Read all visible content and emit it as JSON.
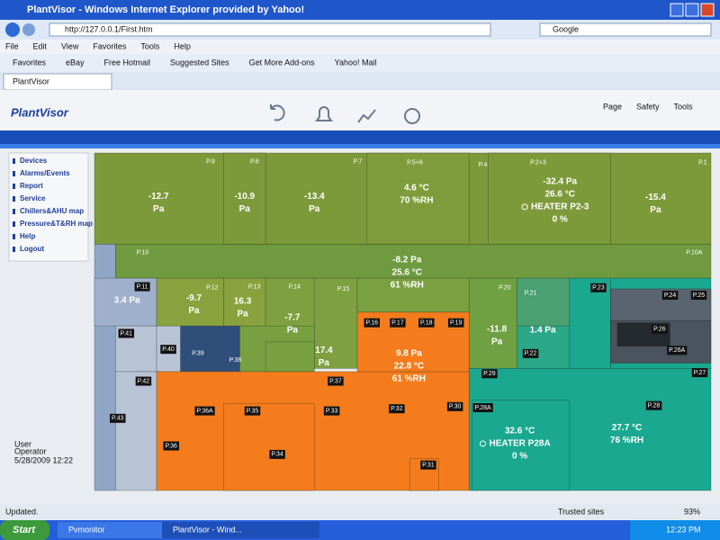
{
  "window": {
    "title": "PlantVisor - Windows Internet Explorer provided by Yahoo!",
    "url": "http://127.0.0.1/First.htm",
    "search": "Google"
  },
  "menu": [
    "File",
    "Edit",
    "View",
    "Favorites",
    "Tools",
    "Help"
  ],
  "favorites": [
    "Favorites",
    "eBay",
    "Free Hotmail",
    "Suggested Sites",
    "Get More Add-ons",
    "Yahoo! Mail"
  ],
  "tab": "PlantVisor",
  "toolbar": [
    "Page",
    "Safety",
    "Tools"
  ],
  "logo": "PlantVisor",
  "sidebar": [
    "Devices",
    "Alarms/Events",
    "Report",
    "Service",
    "Chillers&AHU map",
    "Pressure&T&RH map",
    "Help",
    "Logout"
  ],
  "user": {
    "label": "User",
    "name": "Operator",
    "date": "5/28/2009 12:22"
  },
  "rooms": [
    "P.9",
    "P.8",
    "P.7",
    "P.5+6",
    "P.4",
    "P.2+3",
    "P.1",
    "P.10",
    "P.10A",
    "P.11",
    "P.12",
    "P.13",
    "P.14",
    "P.15",
    "P.16",
    "P.17",
    "P.18",
    "P.19",
    "P.20",
    "P.21",
    "P.22",
    "P.23",
    "P.24",
    "P.25",
    "P.26",
    "P.26A",
    "P.27",
    "P.29",
    "P.28A",
    "P.28",
    "P.41",
    "P.40",
    "P.39",
    "P.38",
    "P.42",
    "P.43",
    "P.37",
    "P.36A",
    "P.35",
    "P.33",
    "P.32",
    "P.30",
    "P.36",
    "P.34",
    "P.31"
  ],
  "readings": [
    [
      "-12.7",
      "Pa"
    ],
    [
      "-10.9",
      "Pa"
    ],
    [
      "-13.4",
      "Pa"
    ],
    [
      "4.6 °C",
      "70 %RH"
    ],
    [
      "-32.4 Pa",
      "26.6 °C",
      "HEATER P2-3",
      "0 %"
    ],
    [
      "-15.4",
      "Pa"
    ],
    [
      "-8.2 Pa",
      "25.6 °C",
      "61 %RH"
    ],
    [
      "3.4 Pa"
    ],
    [
      "-9.7",
      "Pa"
    ],
    [
      "16.3",
      "Pa"
    ],
    [
      "-7.7",
      "Pa"
    ],
    [
      "17.4",
      "Pa"
    ],
    [
      "9.8 Pa",
      "22.8 °C",
      "61 %RH"
    ],
    [
      "-11.8",
      "Pa"
    ],
    [
      "1.4 Pa"
    ],
    [
      "32.6 °C",
      "HEATER P28A",
      "0 %"
    ],
    [
      "27.7 °C",
      "76 %RH"
    ]
  ],
  "status": {
    "text": "Updated.",
    "zone": "Trusted sites",
    "zoom": "93%"
  },
  "taskbar": {
    "start": "Start",
    "items": [
      "Pvmonitor",
      "PlantVisor - Wind..."
    ],
    "clock": "12:23 PM"
  }
}
